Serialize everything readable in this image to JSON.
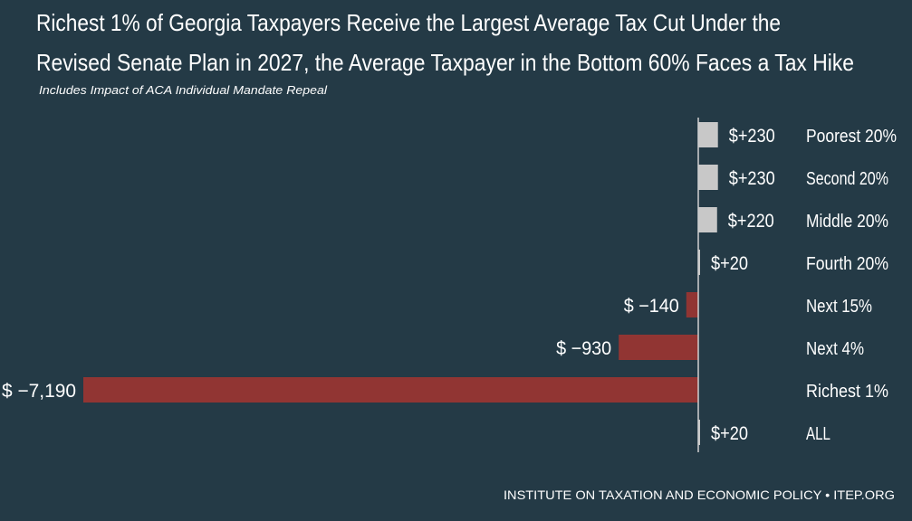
{
  "chart_data": {
    "type": "bar",
    "orientation": "horizontal",
    "title_lines": [
      "Richest 1% of  Georgia Taxpayers Receive the Largest Average Tax Cut Under the",
      "Revised Senate Plan in 2027, the Average Taxpayer in the Bottom 60% Faces a Tax Hike"
    ],
    "subtitle": "Includes Impact of ACA Individual Mandate Repeal",
    "categories": [
      "Poorest 20%",
      "Second 20%",
      "Middle 20%",
      "Fourth 20%",
      "Next 15%",
      "Next 4%",
      "Richest 1%",
      "ALL"
    ],
    "values": [
      230,
      230,
      220,
      20,
      -140,
      -930,
      -7190,
      20
    ],
    "data_labels": [
      "$+230",
      "$+230",
      "$+220",
      "$+20",
      "$ −140",
      "$ −930",
      "$ −7,190",
      "$+20"
    ],
    "xlim": [
      -7190,
      230
    ],
    "grid": false,
    "colors": {
      "positive": "#c8c8c8",
      "negative": "#913533",
      "background": "#243a46",
      "axis": "#d0d0d0"
    }
  },
  "footer": "INSTITUTE ON TAXATION AND ECONOMIC POLICY • ITEP.ORG"
}
